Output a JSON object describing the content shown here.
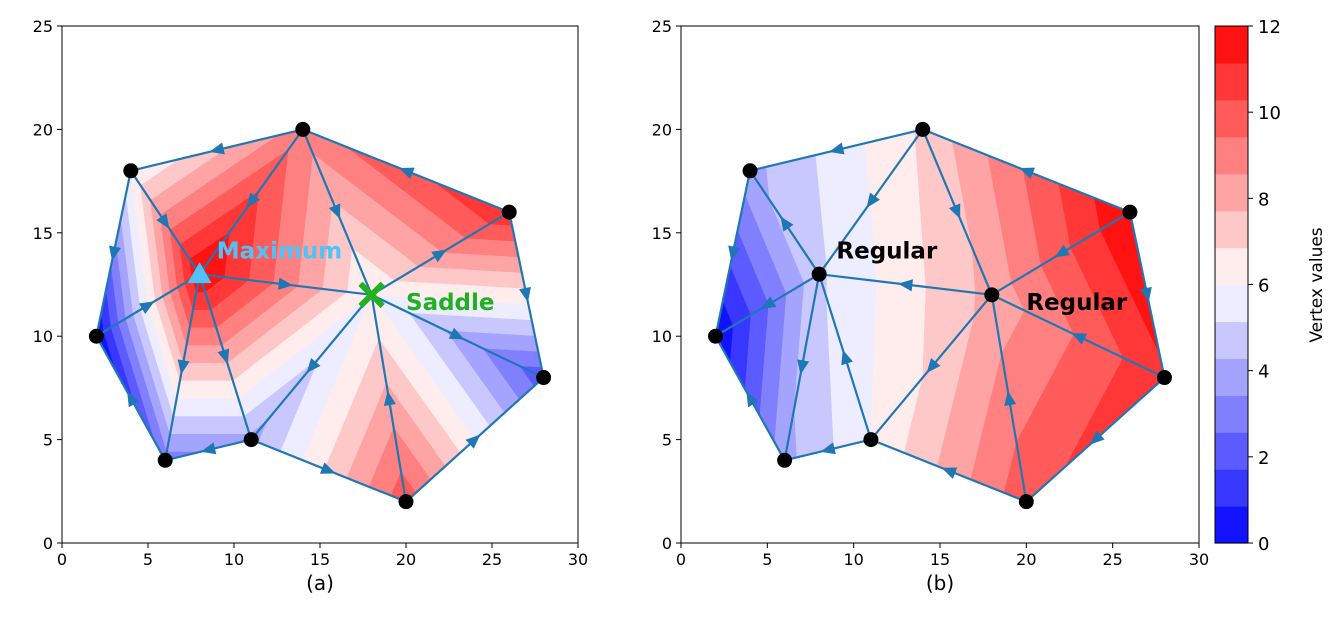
{
  "chart_data": [
    {
      "type": "contour",
      "subtitle": "(a)",
      "xlim": [
        0,
        30
      ],
      "ylim": [
        0,
        25
      ],
      "xticks": [
        "0",
        "5",
        "10",
        "15",
        "20",
        "25",
        "30"
      ],
      "yticks": [
        "0",
        "5",
        "10",
        "15",
        "20",
        "25"
      ],
      "vertices": [
        {
          "x": 2,
          "y": 10,
          "value": 0
        },
        {
          "x": 4,
          "y": 18,
          "value": 6
        },
        {
          "x": 6,
          "y": 4,
          "value": 3
        },
        {
          "x": 11,
          "y": 5,
          "value": 4
        },
        {
          "x": 14,
          "y": 20,
          "value": 9
        },
        {
          "x": 26,
          "y": 16,
          "value": 11
        },
        {
          "x": 28,
          "y": 8,
          "value": 2
        },
        {
          "x": 20,
          "y": 2,
          "value": 10
        },
        {
          "x": 8,
          "y": 13,
          "value": 12
        },
        {
          "x": 18,
          "y": 12,
          "value": 6
        }
      ],
      "edges": [
        [
          1,
          4
        ],
        [
          4,
          5
        ],
        [
          5,
          6
        ],
        [
          6,
          7
        ],
        [
          7,
          3
        ],
        [
          3,
          2
        ],
        [
          2,
          0
        ],
        [
          0,
          1
        ],
        [
          8,
          1
        ],
        [
          8,
          4
        ],
        [
          8,
          0
        ],
        [
          8,
          2
        ],
        [
          8,
          3
        ],
        [
          8,
          9
        ],
        [
          9,
          4
        ],
        [
          9,
          5
        ],
        [
          9,
          6
        ],
        [
          9,
          7
        ],
        [
          9,
          3
        ]
      ],
      "arrows": [
        {
          "from": [
            14,
            20
          ],
          "to": [
            4,
            18
          ]
        },
        {
          "from": [
            26,
            16
          ],
          "to": [
            14,
            20
          ]
        },
        {
          "from": [
            26,
            16
          ],
          "to": [
            28,
            8
          ]
        },
        {
          "from": [
            20,
            2
          ],
          "to": [
            28,
            8
          ]
        },
        {
          "from": [
            11,
            5
          ],
          "to": [
            20,
            2
          ]
        },
        {
          "from": [
            11,
            5
          ],
          "to": [
            6,
            4
          ]
        },
        {
          "from": [
            6,
            4
          ],
          "to": [
            2,
            10
          ]
        },
        {
          "from": [
            4,
            18
          ],
          "to": [
            2,
            10
          ]
        },
        {
          "from": [
            4,
            18
          ],
          "to": [
            8,
            13
          ]
        },
        {
          "from": [
            14,
            20
          ],
          "to": [
            8,
            13
          ]
        },
        {
          "from": [
            2,
            10
          ],
          "to": [
            8,
            13
          ]
        },
        {
          "from": [
            8,
            13
          ],
          "to": [
            6,
            4
          ]
        },
        {
          "from": [
            8,
            13
          ],
          "to": [
            11,
            5
          ]
        },
        {
          "from": [
            8,
            13
          ],
          "to": [
            18,
            12
          ]
        },
        {
          "from": [
            14,
            20
          ],
          "to": [
            18,
            12
          ]
        },
        {
          "from": [
            18,
            12
          ],
          "to": [
            26,
            16
          ]
        },
        {
          "from": [
            18,
            12
          ],
          "to": [
            28,
            8
          ]
        },
        {
          "from": [
            20,
            2
          ],
          "to": [
            18,
            12
          ]
        },
        {
          "from": [
            18,
            12
          ],
          "to": [
            11,
            5
          ]
        }
      ],
      "labels": [
        {
          "text": "Maximum",
          "x": 9,
          "y": 14.2,
          "color": "#4fc3f7"
        },
        {
          "text": "Saddle",
          "x": 20,
          "y": 11.7,
          "color": "#22b022"
        }
      ],
      "markers": [
        {
          "shape": "triangle",
          "x": 8,
          "y": 13,
          "color": "#4fc3f7"
        },
        {
          "shape": "x",
          "x": 18,
          "y": 12,
          "color": "#22b022"
        }
      ]
    },
    {
      "type": "contour",
      "subtitle": "(b)",
      "xlim": [
        0,
        30
      ],
      "ylim": [
        0,
        25
      ],
      "xticks": [
        "0",
        "5",
        "10",
        "15",
        "20",
        "25",
        "30"
      ],
      "yticks": [
        "0",
        "5",
        "10",
        "15",
        "20",
        "25"
      ],
      "vertices": [
        {
          "x": 2,
          "y": 10,
          "value": 0
        },
        {
          "x": 4,
          "y": 18,
          "value": 4
        },
        {
          "x": 6,
          "y": 4,
          "value": 4
        },
        {
          "x": 11,
          "y": 5,
          "value": 6
        },
        {
          "x": 14,
          "y": 20,
          "value": 7
        },
        {
          "x": 26,
          "y": 16,
          "value": 12
        },
        {
          "x": 28,
          "y": 8,
          "value": 11
        },
        {
          "x": 20,
          "y": 2,
          "value": 10
        },
        {
          "x": 8,
          "y": 13,
          "value": 5
        },
        {
          "x": 18,
          "y": 12,
          "value": 8
        }
      ],
      "edges": [
        [
          1,
          4
        ],
        [
          4,
          5
        ],
        [
          5,
          6
        ],
        [
          6,
          7
        ],
        [
          7,
          3
        ],
        [
          3,
          2
        ],
        [
          2,
          0
        ],
        [
          0,
          1
        ],
        [
          8,
          1
        ],
        [
          8,
          4
        ],
        [
          8,
          0
        ],
        [
          8,
          2
        ],
        [
          8,
          3
        ],
        [
          8,
          9
        ],
        [
          9,
          4
        ],
        [
          9,
          5
        ],
        [
          9,
          6
        ],
        [
          9,
          7
        ],
        [
          9,
          3
        ]
      ],
      "arrows": [
        {
          "from": [
            14,
            20
          ],
          "to": [
            4,
            18
          ]
        },
        {
          "from": [
            26,
            16
          ],
          "to": [
            14,
            20
          ]
        },
        {
          "from": [
            26,
            16
          ],
          "to": [
            28,
            8
          ]
        },
        {
          "from": [
            28,
            8
          ],
          "to": [
            20,
            2
          ]
        },
        {
          "from": [
            20,
            2
          ],
          "to": [
            11,
            5
          ]
        },
        {
          "from": [
            11,
            5
          ],
          "to": [
            6,
            4
          ]
        },
        {
          "from": [
            6,
            4
          ],
          "to": [
            2,
            10
          ]
        },
        {
          "from": [
            4,
            18
          ],
          "to": [
            2,
            10
          ]
        },
        {
          "from": [
            8,
            13
          ],
          "to": [
            4,
            18
          ]
        },
        {
          "from": [
            14,
            20
          ],
          "to": [
            8,
            13
          ]
        },
        {
          "from": [
            8,
            13
          ],
          "to": [
            2,
            10
          ]
        },
        {
          "from": [
            8,
            13
          ],
          "to": [
            6,
            4
          ]
        },
        {
          "from": [
            11,
            5
          ],
          "to": [
            8,
            13
          ]
        },
        {
          "from": [
            18,
            12
          ],
          "to": [
            8,
            13
          ]
        },
        {
          "from": [
            14,
            20
          ],
          "to": [
            18,
            12
          ]
        },
        {
          "from": [
            26,
            16
          ],
          "to": [
            18,
            12
          ]
        },
        {
          "from": [
            28,
            8
          ],
          "to": [
            18,
            12
          ]
        },
        {
          "from": [
            20,
            2
          ],
          "to": [
            18,
            12
          ]
        },
        {
          "from": [
            18,
            12
          ],
          "to": [
            11,
            5
          ]
        }
      ],
      "labels": [
        {
          "text": "Regular",
          "x": 9,
          "y": 14.2,
          "color": "#000000"
        },
        {
          "text": "Regular",
          "x": 20,
          "y": 11.7,
          "color": "#000000"
        }
      ],
      "markers": []
    }
  ],
  "colorbar": {
    "label": "Vertex values",
    "min": 0,
    "max": 12,
    "levels": 14,
    "ticks": [
      "0",
      "2",
      "4",
      "6",
      "8",
      "10",
      "12"
    ]
  },
  "colors": {
    "edge": "#1f77b4",
    "vertex": "#000000"
  }
}
